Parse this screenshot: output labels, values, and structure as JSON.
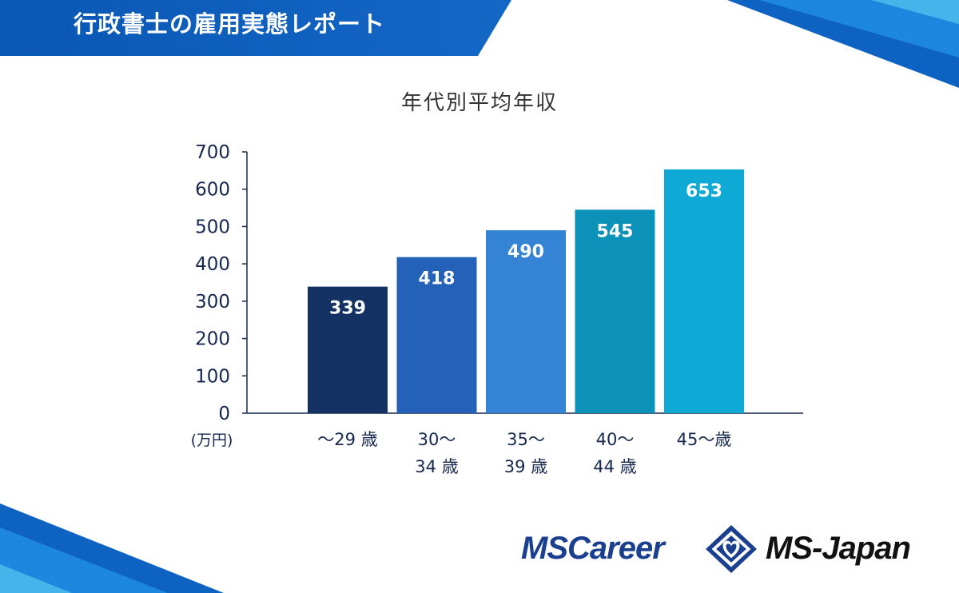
{
  "header": {
    "title": "行政書士の雇用実態レポート"
  },
  "colors": {
    "banner": "#0a57b5",
    "axis": "#16284f"
  },
  "logos": {
    "mscareer": "MSCareer",
    "msjapan": "MS-Japan",
    "mark": "diamond-heart-logo"
  },
  "chart_data": {
    "type": "bar",
    "title": "年代別平均年収",
    "unit_label": "(万円)",
    "ylim": [
      0,
      700
    ],
    "yticks": [
      0,
      100,
      200,
      300,
      400,
      500,
      600,
      700
    ],
    "categories": [
      "〜29 歳",
      "30〜 34 歳",
      "35〜 39 歳",
      "40〜 44 歳",
      "45〜歳"
    ],
    "category_lines": [
      [
        "〜29 歳"
      ],
      [
        "30〜",
        "34 歳"
      ],
      [
        "35〜",
        "39 歳"
      ],
      [
        "40〜",
        "44 歳"
      ],
      [
        "45〜歳"
      ]
    ],
    "values": [
      339,
      418,
      490,
      545,
      653
    ],
    "bar_colors": [
      "#133162",
      "#2461b8",
      "#3483d5",
      "#0c91b9",
      "#0ea9d5"
    ],
    "grid": false,
    "legend": "none"
  }
}
